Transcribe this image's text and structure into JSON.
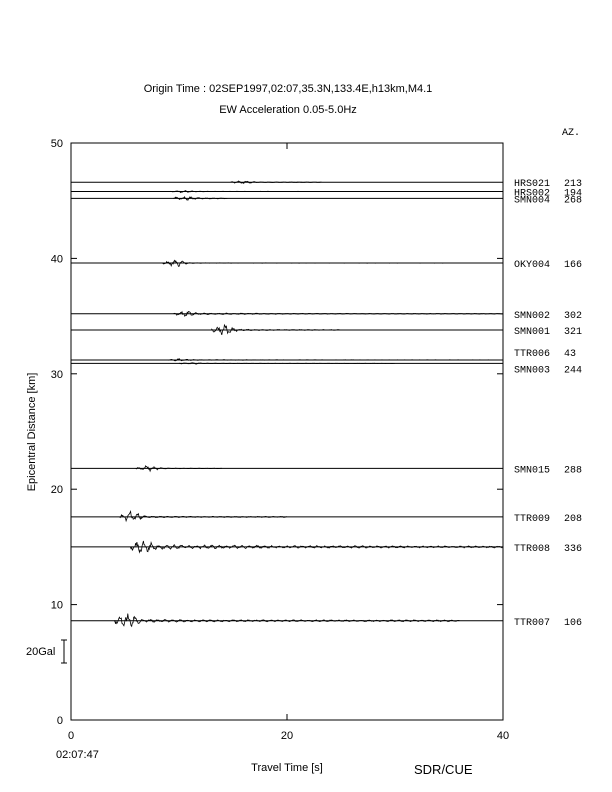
{
  "chart_data": {
    "type": "line",
    "title": "Origin Time : 02SEP1997,02:07,35.3N,133.4E,h13km,M4.1",
    "subtitle": "EW Acceleration 0.05-5.0Hz",
    "xlabel": "Travel Time [s]",
    "ylabel": "Epicentral Distance [km]",
    "xlim": [
      0,
      40
    ],
    "ylim": [
      0,
      50
    ],
    "x_ticks": [
      0,
      20,
      40
    ],
    "y_ticks": [
      0,
      10,
      20,
      30,
      40,
      50
    ],
    "x_origin_note": "02:07:47",
    "azimuth_header": "AZ.",
    "scale_label": "20Gal",
    "credit": "SDR/CUE",
    "grid": false,
    "series": [
      {
        "name": "HRS021",
        "azimuth": "213",
        "distance": 46.6,
        "onset": 14.8,
        "end": 23.2,
        "amp": 0.25,
        "peak": 0.6,
        "decay": 4.0
      },
      {
        "name": "HRS002",
        "azimuth": "194",
        "distance": 45.8,
        "onset": 9.2,
        "end": 40.0,
        "amp": 0.15,
        "peak": 0.4,
        "decay": 6.0
      },
      {
        "name": "SMN004",
        "azimuth": "268",
        "distance": 45.2,
        "onset": 9.5,
        "end": 14.5,
        "amp": 0.45,
        "peak": 0.8,
        "decay": 2.5
      },
      {
        "name": "OKY004",
        "azimuth": "166",
        "distance": 39.6,
        "onset": 8.5,
        "end": 35.0,
        "amp": 0.25,
        "peak": 1.6,
        "decay": 3.0
      },
      {
        "name": "SMN002",
        "azimuth": "302",
        "distance": 35.2,
        "onset": 9.5,
        "end": 40.0,
        "amp": 0.5,
        "peak": 0.9,
        "decay": 6.0
      },
      {
        "name": "SMN001",
        "azimuth": "321",
        "distance": 33.8,
        "onset": 13.0,
        "end": 25.0,
        "amp": 0.6,
        "peak": 2.2,
        "decay": 3.0
      },
      {
        "name": "TTR006",
        "azimuth": "43",
        "distance": 31.2,
        "onset": 9.0,
        "end": 40.0,
        "amp": 0.2,
        "peak": 0.4,
        "decay": 8.0
      },
      {
        "name": "SMN003",
        "azimuth": "244",
        "distance": 30.9,
        "onset": 10.0,
        "end": 30.0,
        "amp": 0.15,
        "peak": 0.3,
        "decay": 5.0
      },
      {
        "name": "SMN015",
        "azimuth": "288",
        "distance": 21.8,
        "onset": 6.0,
        "end": 14.0,
        "amp": 0.3,
        "peak": 1.2,
        "decay": 3.0
      },
      {
        "name": "TTR009",
        "azimuth": "208",
        "distance": 17.6,
        "onset": 4.5,
        "end": 20.0,
        "amp": 0.7,
        "peak": 2.2,
        "decay": 3.0
      },
      {
        "name": "TTR008",
        "azimuth": "336",
        "distance": 15.0,
        "onset": 5.5,
        "end": 40.0,
        "amp": 1.3,
        "peak": 2.0,
        "decay": 10.0
      },
      {
        "name": "TTR007",
        "azimuth": "106",
        "distance": 8.6,
        "onset": 4.0,
        "end": 36.0,
        "amp": 1.3,
        "peak": 2.6,
        "decay": 3.5
      }
    ]
  }
}
